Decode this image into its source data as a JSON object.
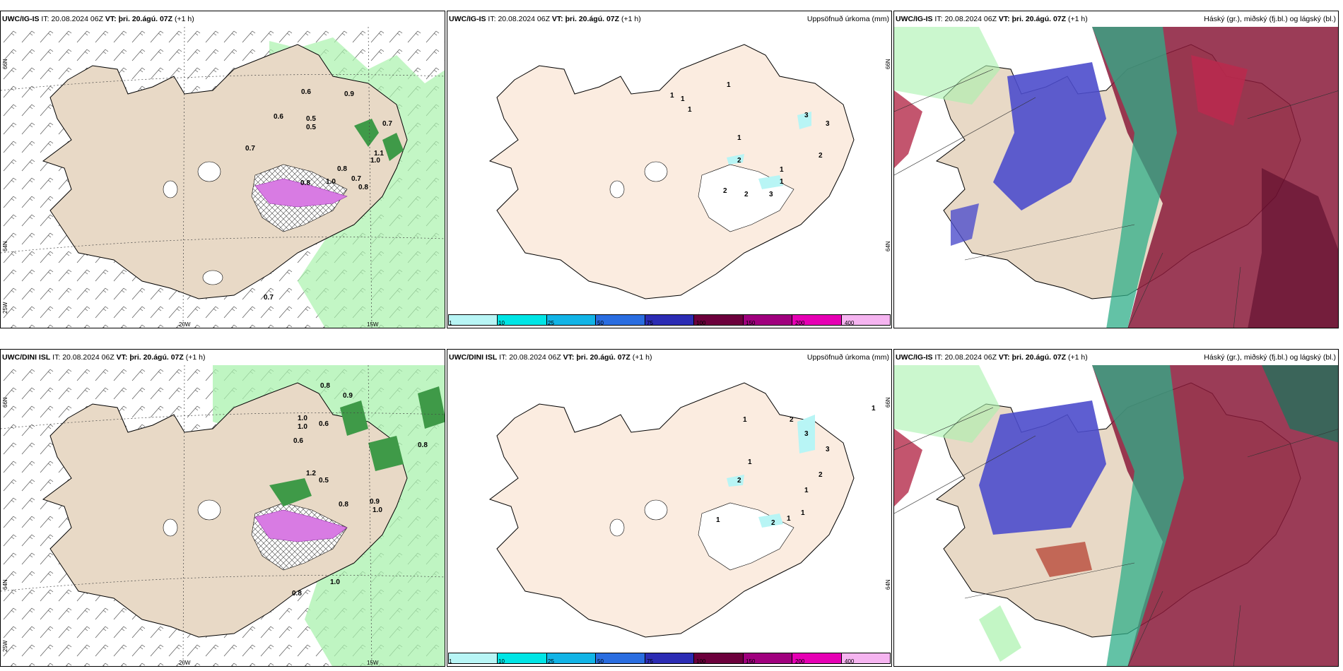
{
  "panels": [
    {
      "model": "UWC/IG-IS",
      "it_prefix": "IT:",
      "it": "20.08.2024 06Z",
      "vt_prefix": "VT:",
      "vt": "þri. 20.ágú. 07Z",
      "lead": "(+1 h)",
      "right_title": "",
      "labels": [
        "0.6",
        "0.9",
        "0.6",
        "0.5",
        "0.5",
        "0.7",
        "0.7",
        "1.1",
        "1.0",
        "0.8",
        "0.8",
        "0.7",
        "1.0",
        "0.8",
        "0.7"
      ],
      "axis": {
        "lon_left": "20W",
        "lon_right": "15W",
        "lat_top": "66N",
        "lat_mid": "64N",
        "lat_corner": "25W"
      }
    },
    {
      "model": "UWC/IG-IS",
      "it_prefix": "IT:",
      "it": "20.08.2024 06Z",
      "vt_prefix": "VT:",
      "vt": "þri. 20.ágú. 07Z",
      "lead": "(+1 h)",
      "right_title": "Uppsöfnuð úrkoma (mm)",
      "labels": [
        "1",
        "1",
        "1",
        "1",
        "1",
        "3",
        "3",
        "2",
        "2",
        "1",
        "2",
        "2",
        "3",
        "1"
      ],
      "axis": {
        "lat_top": "66N",
        "lat_mid": "64N"
      }
    },
    {
      "model": "UWC/IG-IS",
      "it_prefix": "IT:",
      "it": "20.08.2024 06Z",
      "vt_prefix": "VT:",
      "vt": "þri. 20.ágú. 07Z",
      "lead": "(+1 h)",
      "right_title": "Háský (gr.), miðský (fj.bl.) og lágský (bl.)"
    },
    {
      "model": "UWC/DINI ISL",
      "it_prefix": "IT:",
      "it": "20.08.2024 06Z",
      "vt_prefix": "VT:",
      "vt": "þri. 20.ágú. 07Z",
      "lead": "(+1 h)",
      "right_title": "",
      "labels": [
        "0.8",
        "0.9",
        "1.0",
        "1.0",
        "0.6",
        "0.6",
        "0.5",
        "1.2",
        "0.8",
        "0.9",
        "1.0",
        "0.8",
        "1.0",
        "0.8"
      ],
      "axis": {
        "lon_left": "20W",
        "lon_right": "15W",
        "lat_top": "66N",
        "lat_mid": "64N",
        "lat_corner": "25W"
      }
    },
    {
      "model": "UWC/DINI ISL",
      "it_prefix": "IT:",
      "it": "20.08.2024 06Z",
      "vt_prefix": "VT:",
      "vt": "þri. 20.ágú. 07Z",
      "lead": "(+1 h)",
      "right_title": "Uppsöfnuð úrkoma (mm)",
      "labels": [
        "1",
        "1",
        "2",
        "3",
        "3",
        "2",
        "1",
        "1",
        "2",
        "1",
        "2",
        "1",
        "1"
      ],
      "axis": {
        "lat_top": "66N",
        "lat_mid": "64N"
      }
    },
    {
      "model": "UWC/IG-IS",
      "it_prefix": "IT:",
      "it": "20.08.2024 06Z",
      "vt_prefix": "VT:",
      "vt": "þri. 20.ágú. 07Z",
      "lead": "(+1 h)",
      "right_title": "Háský (gr.), miðský (fj.bl.) og lágský (bl.)"
    }
  ],
  "colorbar": {
    "ticks": [
      "1",
      "10",
      "25",
      "50",
      "75",
      "100",
      "150",
      "200",
      "400"
    ],
    "colors": [
      "#b8f5f5",
      "#00e5e5",
      "#12b4e6",
      "#2a6de0",
      "#2c2cb4",
      "#6c003c",
      "#a0007e",
      "#e600b4",
      "#f5b4f0"
    ]
  },
  "colors": {
    "land": "#e8d9c6",
    "land_light": "#fbece0",
    "precip": "#a9f2ad",
    "snow": "#d87be3",
    "high_cloud": "#2fae88",
    "mid_cloud": "#4d4dcc",
    "low_cloud": "#8a1a3a"
  }
}
